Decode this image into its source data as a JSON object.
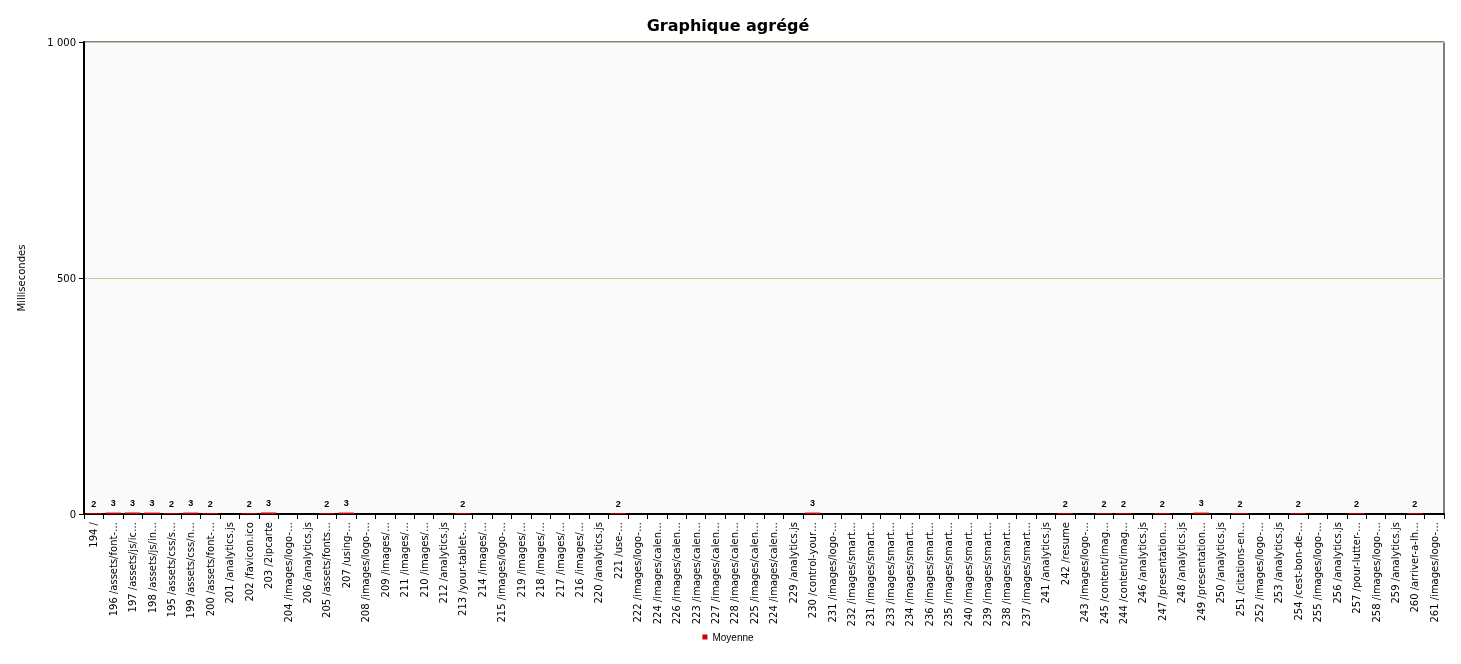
{
  "chart_data": {
    "type": "bar",
    "title": "Graphique agrégé",
    "ylabel": "Millisecondes",
    "categories": [
      "194 /",
      "196 /assets/font-…",
      "197 /assets/js/ic…",
      "198 /assets/js/in…",
      "195 /assets/css/s…",
      "199 /assets/css/n…",
      "200 /assets/font-…",
      "201 /analytics.js",
      "202 /favicon.ico",
      "203 /2ipcarte",
      "204 /images/logo-…",
      "206 /analytics.js",
      "205 /assets/fonts…",
      "207 /using-…",
      "208 /images/logo-…",
      "209 /images/…",
      "211 /images/…",
      "210 /images/…",
      "212 /analytics.js",
      "213 /your-tablet-…",
      "214 /images/…",
      "215 /images/logo-…",
      "219 /images/…",
      "218 /images/…",
      "217 /images/…",
      "216 /images/…",
      "220 /analytics.js",
      "221 /use-…",
      "222 /images/logo-…",
      "224 /images/calen…",
      "226 /images/calen…",
      "223 /images/calen…",
      "227 /images/calen…",
      "228 /images/calen…",
      "225 /images/calen…",
      "224 /images/calen…",
      "229 /analytics.js",
      "230 /control-your…",
      "231 /images/logo-…",
      "232 /images/smart…",
      "231 /images/smart…",
      "233 /images/smart…",
      "234 /images/smart…",
      "236 /images/smart…",
      "235 /images/smart…",
      "240 /images/smart…",
      "239 /images/smart…",
      "238 /images/smart…",
      "237 /images/smart…",
      "241 /analytics.js",
      "242 /resume",
      "243 /images/logo-…",
      "245 /content/imag…",
      "244 /content/imag…",
      "246 /analytics.js",
      "247 /presentation…",
      "248 /analytics.js",
      "249 /presentation…",
      "250 /analytics.js",
      "251 /citations-en…",
      "252 /images/logo-…",
      "253 /analytics.js",
      "254 /cest-bon-de-…",
      "255 /images/logo-…",
      "256 /analytics.js",
      "257 /pour-lutter-…",
      "258 /images/logo-…",
      "259 /analytics.js",
      "260 /arriver-a-lh…",
      "261 /images/logo-…"
    ],
    "series": [
      {
        "name": "Moyenne",
        "color": "#cc0000",
        "values": [
          2,
          3,
          3,
          3,
          2,
          3,
          2,
          0,
          2,
          3,
          0,
          0,
          2,
          3,
          0,
          0,
          0,
          0,
          0,
          2,
          0,
          0,
          0,
          0,
          0,
          0,
          0,
          2,
          0,
          0,
          0,
          0,
          0,
          0,
          0,
          0,
          0,
          3,
          0,
          0,
          0,
          0,
          0,
          0,
          0,
          0,
          0,
          0,
          0,
          0,
          2,
          0,
          2,
          2,
          0,
          2,
          0,
          3,
          0,
          2,
          0,
          0,
          2,
          0,
          0,
          2,
          0,
          0,
          2,
          0
        ],
        "value_labels": [
          "2",
          "3",
          "3",
          "3",
          "2",
          "3",
          "2",
          null,
          "2",
          "3",
          null,
          null,
          "2",
          "3",
          null,
          null,
          null,
          null,
          null,
          "2",
          null,
          null,
          null,
          null,
          null,
          null,
          null,
          "2",
          null,
          null,
          null,
          null,
          null,
          null,
          null,
          null,
          null,
          "3",
          null,
          null,
          null,
          null,
          null,
          null,
          null,
          null,
          null,
          null,
          null,
          null,
          "2",
          null,
          "2",
          "2",
          null,
          "2",
          null,
          "3",
          null,
          "2",
          null,
          null,
          "2",
          null,
          null,
          "2",
          null,
          null,
          "2",
          null
        ]
      }
    ],
    "ylim": [
      0,
      1000
    ],
    "yticks": [
      0,
      500,
      {
        "value": 1000,
        "label": "1 000"
      }
    ],
    "grid": "y",
    "legend": "bottom"
  }
}
